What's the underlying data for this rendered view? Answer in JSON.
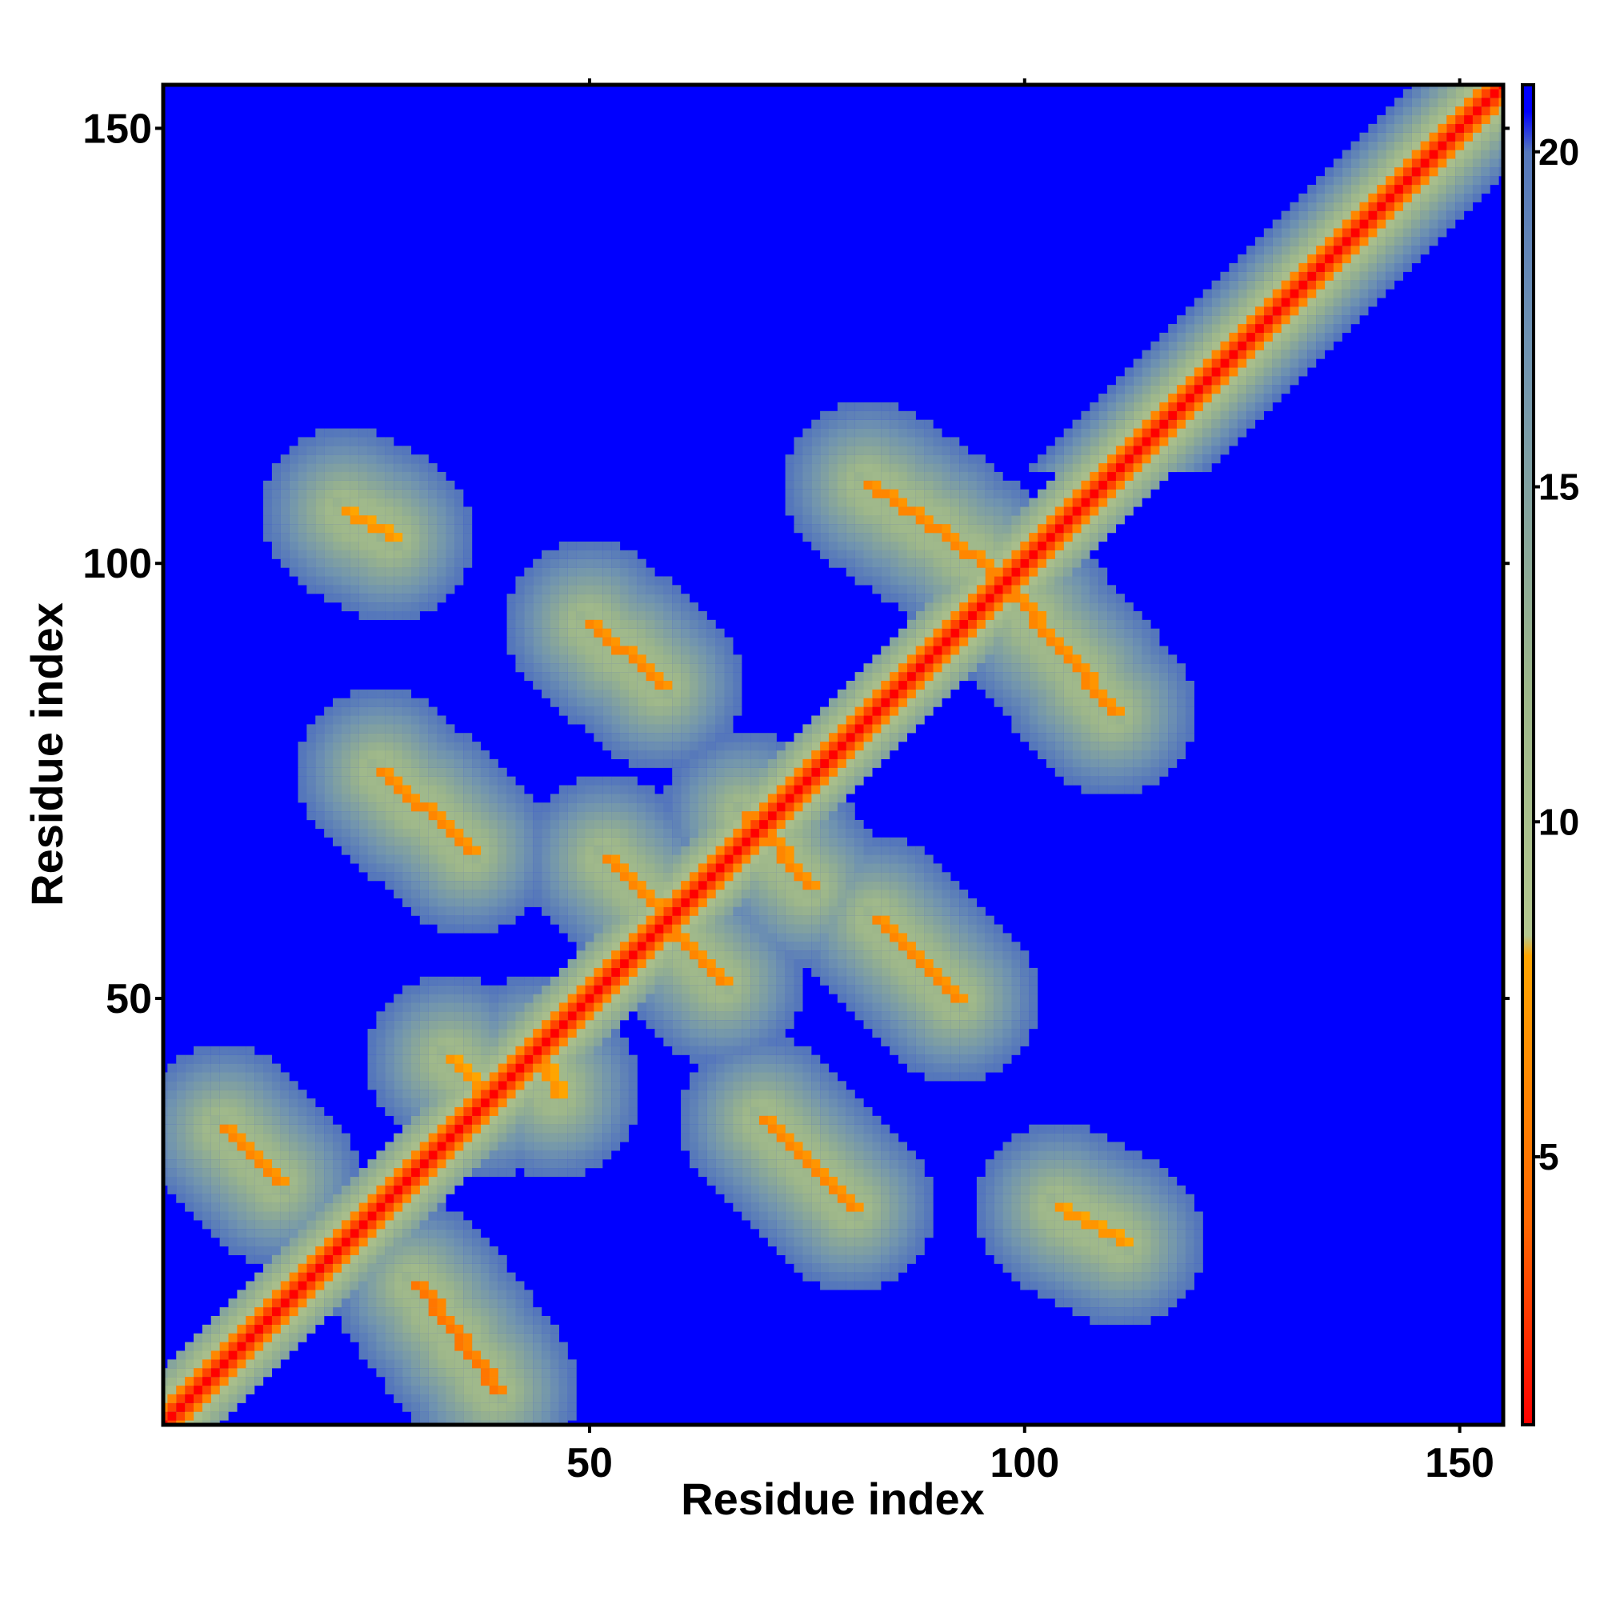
{
  "chart_data": {
    "type": "heatmap",
    "title": "",
    "xlabel": "Residue index",
    "ylabel": "Residue index",
    "xlim": [
      1,
      155
    ],
    "ylim": [
      1,
      155
    ],
    "x_ticks": [
      50,
      100,
      150
    ],
    "y_ticks": [
      50,
      100,
      150
    ],
    "x_tick_labels": [
      "50",
      "100",
      "150"
    ],
    "y_tick_labels": [
      "50",
      "100",
      "150"
    ],
    "colorbar": {
      "ticks": [
        5,
        10,
        15,
        20
      ],
      "tick_labels": [
        "5",
        "10",
        "15",
        "20"
      ],
      "range": [
        1,
        21
      ],
      "colors": [
        {
          "stop": 1,
          "color": "#ff0000"
        },
        {
          "stop": 4,
          "color": "#ff6600"
        },
        {
          "stop": 8,
          "color": "#ffa500"
        },
        {
          "stop": 8.3,
          "color": "#b4c78f"
        },
        {
          "stop": 12,
          "color": "#9cb68a"
        },
        {
          "stop": 17,
          "color": "#6f93b0"
        },
        {
          "stop": 20,
          "color": "#5577bb"
        },
        {
          "stop": 20.6,
          "color": "#0000ff"
        },
        {
          "stop": 21,
          "color": "#0000ff"
        }
      ]
    },
    "background_value": 21,
    "diagonal": {
      "from": 1,
      "to": 155,
      "value": 1
    },
    "contact_bands": [
      {
        "x": [
          8,
          14
        ],
        "y": [
          35,
          29
        ],
        "value": 6
      },
      {
        "x": [
          30,
          39
        ],
        "y": [
          17,
          5
        ],
        "value": 5
      },
      {
        "x": [
          26,
          36
        ],
        "y": [
          76,
          67
        ],
        "value": 6
      },
      {
        "x": [
          50,
          58
        ],
        "y": [
          93,
          86
        ],
        "value": 6
      },
      {
        "x": [
          52,
          65
        ],
        "y": [
          66,
          52
        ],
        "value": 6
      },
      {
        "x": [
          70,
          80
        ],
        "y": [
          36,
          26
        ],
        "value": 6
      },
      {
        "x": [
          82,
          98
        ],
        "y": [
          109,
          98
        ],
        "value": 6
      },
      {
        "x": [
          98,
          110
        ],
        "y": [
          97,
          83
        ],
        "value": 6
      },
      {
        "x": [
          83,
          92
        ],
        "y": [
          59,
          50
        ],
        "value": 6
      },
      {
        "x": [
          68,
          75
        ],
        "y": [
          71,
          63
        ],
        "value": 6
      },
      {
        "x": [
          22,
          27
        ],
        "y": [
          106,
          103
        ],
        "value": 7
      },
      {
        "x": [
          104,
          111
        ],
        "y": [
          26,
          22
        ],
        "value": 7
      },
      {
        "x": [
          44,
          46
        ],
        "y": [
          43,
          39
        ],
        "value": 7
      },
      {
        "x": [
          34,
          38
        ],
        "y": [
          43,
          39
        ],
        "value": 7
      }
    ]
  }
}
